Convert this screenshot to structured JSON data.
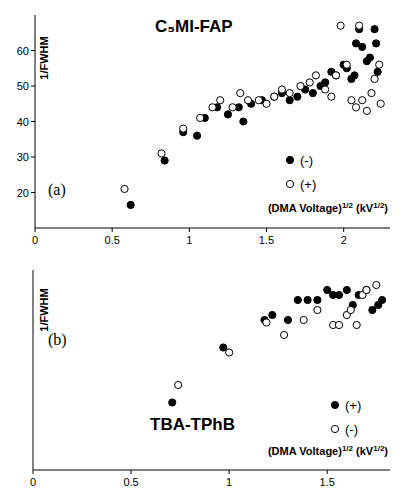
{
  "chart_data": [
    {
      "type": "scatter",
      "title": "C₅MI-FAP",
      "annotations": [
        "(a)"
      ],
      "x_label": "(DMA Voltage)1/2 (kV1/2)",
      "y_label": "1/FWHM",
      "xlim": [
        0,
        2.3
      ],
      "xticks": [
        0,
        0.5,
        1,
        1.5,
        2
      ],
      "ylim": [
        10,
        70
      ],
      "yticks": [
        20,
        30,
        40,
        50,
        60
      ],
      "legend": "bottom right",
      "series": [
        {
          "name": "(-)",
          "color": "#000000",
          "marker": "filled",
          "x": [
            0.62,
            0.84,
            0.96,
            1.05,
            1.1,
            1.18,
            1.25,
            1.32,
            1.35,
            1.4,
            1.47,
            1.55,
            1.6,
            1.65,
            1.7,
            1.75,
            1.8,
            1.85,
            1.88,
            1.92,
            1.95,
            2.0,
            2.02,
            2.05,
            2.07,
            2.08,
            2.1,
            2.12,
            2.15,
            2.17,
            2.2,
            2.21,
            2.22
          ],
          "values": [
            16.5,
            29,
            37,
            36,
            41,
            44,
            42,
            44,
            40,
            45,
            46,
            47,
            48,
            46,
            47,
            49,
            48,
            50,
            51,
            54,
            53,
            56,
            55,
            52,
            53,
            62,
            66,
            61,
            57,
            58,
            66,
            62,
            54
          ]
        },
        {
          "name": "(+)",
          "color": "#000000",
          "marker": "open",
          "x": [
            0.58,
            0.82,
            0.96,
            1.07,
            1.15,
            1.2,
            1.28,
            1.33,
            1.38,
            1.45,
            1.5,
            1.55,
            1.6,
            1.65,
            1.72,
            1.78,
            1.82,
            1.88,
            1.92,
            1.95,
            1.98,
            2.02,
            2.05,
            2.08,
            2.1,
            2.12,
            2.15,
            2.18,
            2.2,
            2.23,
            2.24
          ],
          "values": [
            21,
            31,
            38,
            41,
            44,
            46,
            44,
            48,
            46,
            46,
            45,
            47,
            49,
            48,
            50,
            51,
            53,
            49,
            47,
            53,
            67,
            56,
            46,
            44,
            67,
            46,
            43,
            48,
            52,
            56,
            45
          ]
        }
      ]
    },
    {
      "type": "scatter",
      "title": "TBA-TPhB",
      "annotations": [
        "(b)"
      ],
      "x_label": "(DMA Voltage)1/2 (kV1/2)",
      "y_label": "1/FWHM",
      "xlim": [
        0,
        1.82
      ],
      "xticks": [
        0,
        0.5,
        1,
        1.5
      ],
      "ylim": [
        15,
        55
      ],
      "tick_labels": "x",
      "legend": "bottom right",
      "series": [
        {
          "name": "(+)",
          "color": "#000000",
          "marker": "filled",
          "x": [
            0.71,
            0.97,
            1.18,
            1.22,
            1.3,
            1.35,
            1.4,
            1.45,
            1.5,
            1.53,
            1.56,
            1.6,
            1.63,
            1.66,
            1.7,
            1.73,
            1.76,
            1.78
          ],
          "values": [
            28.5,
            39.5,
            45,
            46,
            45,
            49,
            49,
            49,
            51,
            50,
            50,
            51,
            48,
            50,
            51,
            47,
            48,
            49
          ]
        },
        {
          "name": "(-)",
          "color": "#000000",
          "marker": "open",
          "x": [
            0.74,
            1.0,
            1.19,
            1.28,
            1.38,
            1.45,
            1.53,
            1.56,
            1.6,
            1.62,
            1.65,
            1.68,
            1.7,
            1.75
          ],
          "values": [
            32,
            38.5,
            44.5,
            42,
            45,
            47,
            44,
            44,
            46,
            47,
            44,
            50,
            51,
            52
          ]
        }
      ]
    }
  ]
}
